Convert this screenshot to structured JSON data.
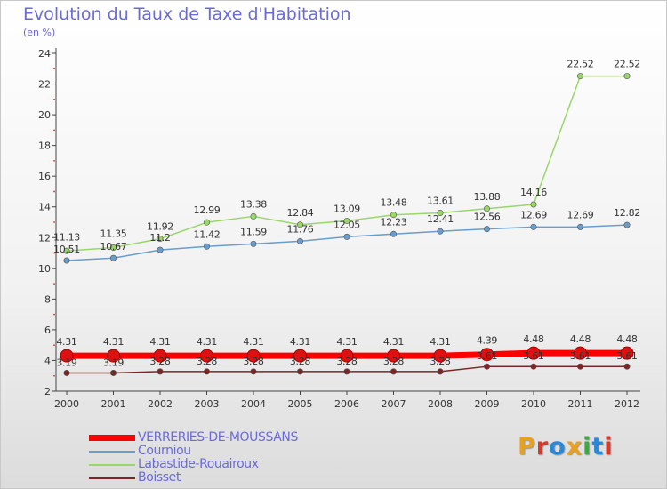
{
  "title": "Evolution du Taux de Taxe d'Habitation",
  "subtitle": "(en %)",
  "brand": {
    "text": "Proxiti",
    "letter_colors": [
      "#e8a020",
      "#d83a2a",
      "#2a88d8",
      "#e8a020",
      "#3aaa3a",
      "#2a88d8",
      "#d83a2a"
    ]
  },
  "chart_data": {
    "type": "line",
    "x": [
      "2000",
      "2001",
      "2002",
      "2003",
      "2004",
      "2005",
      "2006",
      "2007",
      "2008",
      "2009",
      "2010",
      "2011",
      "2012"
    ],
    "ylim": [
      2,
      24
    ],
    "yticks": [
      2,
      4,
      6,
      8,
      10,
      12,
      14,
      16,
      18,
      20,
      22,
      24
    ],
    "grid": false,
    "legend_position": "bottom-left",
    "series": [
      {
        "name": "Boisset",
        "color": "#7a2626",
        "values": [
          3.19,
          3.19,
          3.28,
          3.28,
          3.28,
          3.28,
          3.28,
          3.28,
          3.28,
          3.61,
          3.61,
          3.61,
          3.61
        ],
        "labels": [
          "3.19",
          "3.19",
          "3.28",
          "3.28",
          "3.28",
          "3.28",
          "3.28",
          "3.28",
          "3.28",
          "3.61",
          "3.61",
          "3.61",
          "3.61"
        ]
      },
      {
        "name": "Courniou",
        "color": "#6a9ccc",
        "values": [
          10.51,
          10.67,
          11.2,
          11.42,
          11.59,
          11.76,
          12.05,
          12.23,
          12.41,
          12.56,
          12.69,
          12.69,
          12.82
        ],
        "labels": [
          "10.51",
          "10.67",
          "11.2",
          "11.42",
          "11.59",
          "11.76",
          "12.05",
          "12.23",
          "12.41",
          "12.56",
          "12.69",
          "12.69",
          "12.82"
        ]
      },
      {
        "name": "Labastide-Rouairoux",
        "color": "#9ad66a",
        "values": [
          11.13,
          11.35,
          11.92,
          12.99,
          13.38,
          12.84,
          13.09,
          13.48,
          13.61,
          13.88,
          14.16,
          22.52,
          22.52
        ],
        "labels": [
          "11.13",
          "11.35",
          "11.92",
          "12.99",
          "13.38",
          "12.84",
          "13.09",
          "13.48",
          "13.61",
          "13.88",
          "14.16",
          "22.52",
          "22.52"
        ]
      },
      {
        "name": "VERRERIES-DE-MOUSSANS",
        "color": "#ff0000",
        "values": [
          4.31,
          4.31,
          4.31,
          4.31,
          4.31,
          4.31,
          4.31,
          4.31,
          4.31,
          4.39,
          4.48,
          4.48,
          4.48
        ],
        "labels": [
          "4.31",
          "4.31",
          "4.31",
          "4.31",
          "4.31",
          "4.31",
          "4.31",
          "4.31",
          "4.31",
          "4.39",
          "4.48",
          "4.48",
          "4.48"
        ]
      }
    ],
    "legend": [
      {
        "name": "VERRERIES-DE-MOUSSANS",
        "color": "#ff0000"
      },
      {
        "name": "Courniou",
        "color": "#6a9ccc"
      },
      {
        "name": "Labastide-Rouairoux",
        "color": "#9ad66a"
      },
      {
        "name": "Boisset",
        "color": "#7a2626"
      }
    ]
  }
}
